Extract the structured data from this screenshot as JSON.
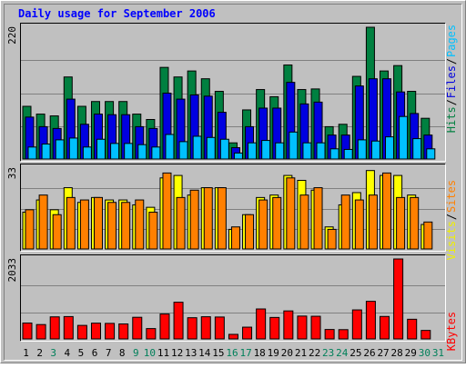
{
  "chart_data": {
    "type": "bar",
    "title": "Daily usage for September 2006",
    "categories": [
      "1",
      "2",
      "3",
      "4",
      "5",
      "6",
      "7",
      "8",
      "9",
      "10",
      "11",
      "12",
      "13",
      "14",
      "15",
      "16",
      "17",
      "18",
      "19",
      "20",
      "21",
      "22",
      "23",
      "24",
      "25",
      "26",
      "27",
      "28",
      "29",
      "30",
      "31"
    ],
    "weekend_days": [
      "3",
      "9",
      "10",
      "16",
      "17",
      "23",
      "24",
      "30",
      "31"
    ],
    "panels": [
      {
        "id": "hits",
        "ymax_label": "220",
        "ylim": [
          0,
          220
        ],
        "legend": [
          "Pages",
          "/",
          "Files",
          "/",
          "Hits"
        ],
        "legend_colors": [
          "#00c0ff",
          "#000000",
          "#0000e0",
          "#000000",
          "#008040"
        ],
        "series": [
          {
            "name": "Hits",
            "color": "#008040",
            "values": [
              88,
              75,
              72,
              137,
              88,
              96,
              96,
              96,
              75,
              66,
              153,
              137,
              147,
              134,
              113,
              27,
              82,
              116,
              104,
              157,
              116,
              117,
              54,
              58,
              138,
              220,
              147,
              156,
              113,
              68,
              0
            ]
          },
          {
            "name": "Files",
            "color": "#0000e0",
            "values": [
              70,
              54,
              51,
              100,
              58,
              75,
              74,
              74,
              54,
              51,
              110,
              100,
              107,
              105,
              78,
              19,
              54,
              85,
              85,
              128,
              92,
              95,
              40,
              40,
              122,
              134,
              134,
              112,
              76,
              40,
              0
            ]
          },
          {
            "name": "Pages",
            "color": "#00c0ff",
            "values": [
              20,
              25,
              32,
              35,
              20,
              33,
              26,
              26,
              24,
              20,
              41,
              29,
              38,
              36,
              33,
              10,
              27,
              31,
              27,
              45,
              27,
              27,
              17,
              16,
              32,
              30,
              37,
              71,
              34,
              17,
              0
            ]
          }
        ]
      },
      {
        "id": "visits",
        "ymax_label": "33",
        "ylim": [
          0,
          33
        ],
        "legend": [
          "Sites",
          "/",
          "Visits"
        ],
        "legend_colors": [
          "#ff8000",
          "#000000",
          "#f0f000"
        ],
        "series": [
          {
            "name": "Visits",
            "color": "#ffff00",
            "values": [
              15,
              20,
              16,
              25,
              19,
              21,
              20,
              20,
              18,
              17,
              29,
              30,
              22,
              25,
              25,
              8,
              14,
              21,
              22,
              30,
              28,
              24,
              9,
              18,
              23,
              32,
              30,
              30,
              22,
              10,
              0
            ]
          },
          {
            "name": "Sites",
            "color": "#ff8000",
            "values": [
              16,
              22,
              14,
              21,
              20,
              21,
              19,
              19,
              20,
              15,
              31,
              21,
              24,
              25,
              25,
              9,
              14,
              20,
              21,
              29,
              22,
              25,
              8,
              22,
              20,
              22,
              31,
              21,
              21,
              11,
              0
            ]
          }
        ]
      },
      {
        "id": "kbytes",
        "ymax_label": "2033",
        "ylim": [
          0,
          2033
        ],
        "legend": [
          "KBytes"
        ],
        "legend_colors": [
          "#ff0000"
        ],
        "series": [
          {
            "name": "KBytes",
            "color": "#ff0000",
            "values": [
              404,
              365,
              561,
              568,
              344,
              401,
              395,
              381,
              550,
              263,
              633,
              933,
              539,
              564,
              557,
              116,
              299,
              762,
              546,
              712,
              581,
              576,
              240,
              236,
              738,
              956,
              571,
              2033,
              500,
              216,
              0
            ]
          }
        ]
      }
    ]
  }
}
